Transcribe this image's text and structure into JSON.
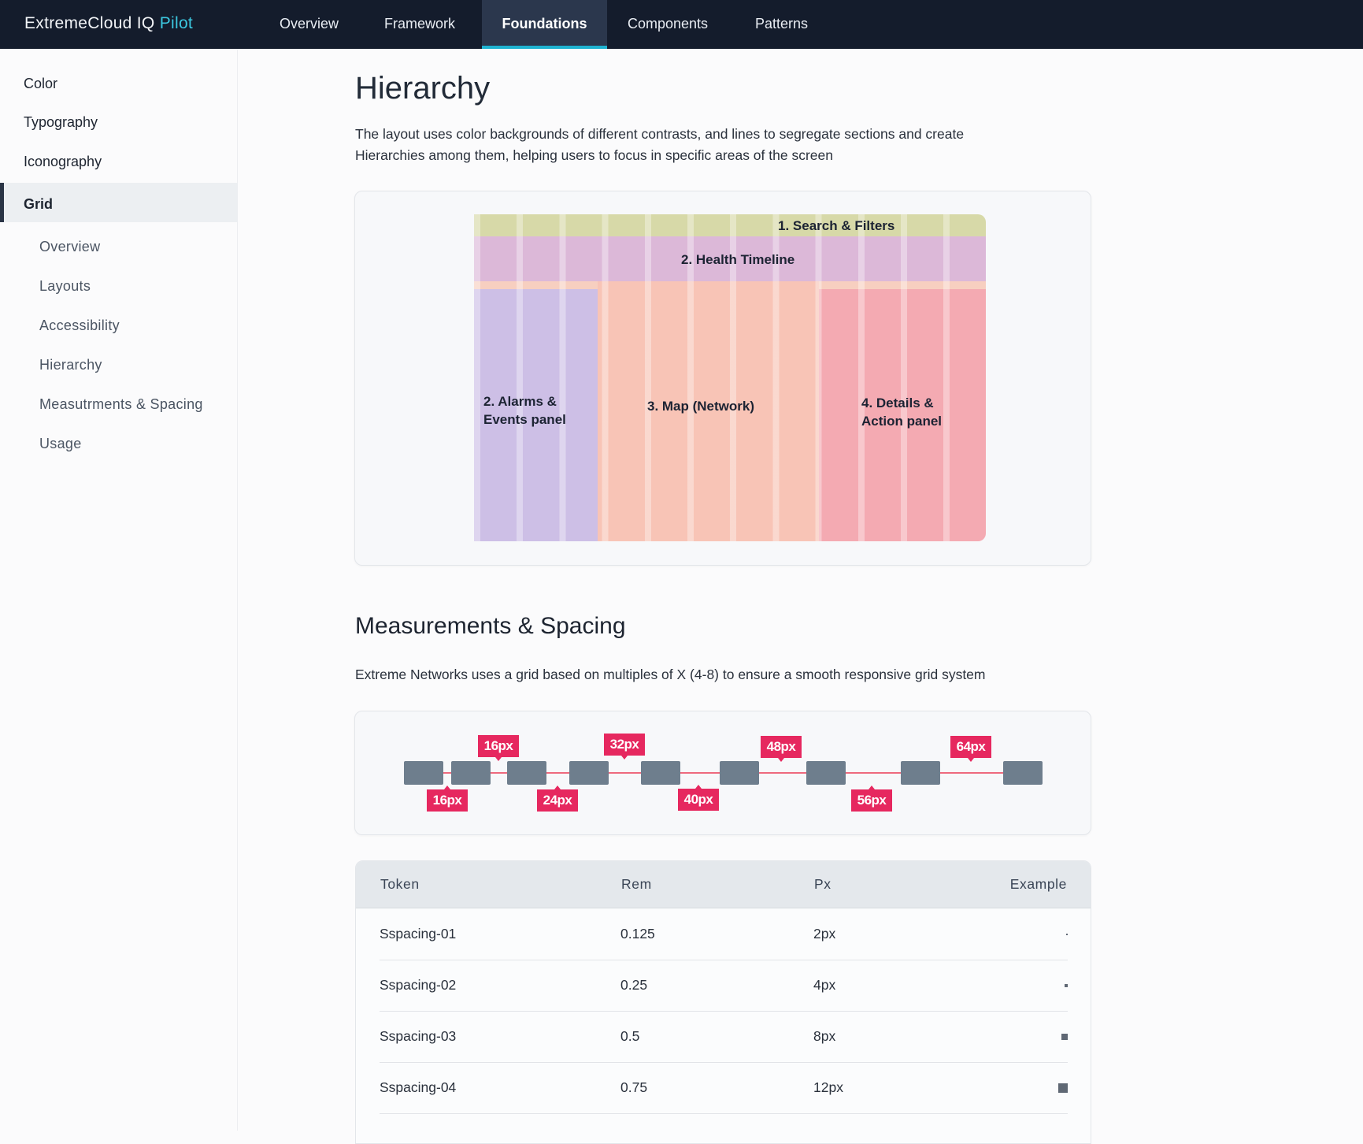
{
  "nav": {
    "logo_main": "ExtremeCloud IQ",
    "logo_accent": "Pilot",
    "items": [
      {
        "label": "Overview"
      },
      {
        "label": "Framework"
      },
      {
        "label": "Foundations",
        "active": true
      },
      {
        "label": "Components"
      },
      {
        "label": "Patterns"
      }
    ]
  },
  "sidebar": {
    "items": [
      {
        "label": "Color"
      },
      {
        "label": "Typography"
      },
      {
        "label": "Iconography"
      },
      {
        "label": "Grid",
        "active": true
      }
    ],
    "sub_items": [
      {
        "label": "Overview"
      },
      {
        "label": "Layouts"
      },
      {
        "label": "Accessibility"
      },
      {
        "label": "Hierarchy"
      },
      {
        "label": "Measutrments & Spacing"
      },
      {
        "label": "Usage"
      }
    ]
  },
  "hierarchy": {
    "title": "Hierarchy",
    "line1": "The layout uses color backgrounds of different contrasts, and lines to segregate sections and create",
    "line2": "Hierarchies among them, helping users to focus in specific areas of the screen",
    "zones": {
      "search": "1. Search & Filters",
      "health": "2. Health Timeline",
      "alarms_1": "2. Alarms &",
      "alarms_2": "Events panel",
      "map": "3. Map (Network)",
      "details_1": "4. Details &",
      "details_2": "Action panel"
    }
  },
  "spacing": {
    "title": "Measurements & Spacing",
    "description": "Extreme Networks uses a grid based on multiples of X (4-8) to ensure a smooth responsive grid system",
    "labels_top": [
      "16px",
      "32px",
      "48px",
      "64px"
    ],
    "labels_bottom": [
      "16px",
      "24px",
      "40px",
      "56px"
    ]
  },
  "table": {
    "headers": {
      "token": "Token",
      "rem": "Rem",
      "px": "Px",
      "example": "Example"
    },
    "rows": [
      {
        "token": "Sspacing-01",
        "rem": "0.125",
        "px": "2px",
        "size": 2
      },
      {
        "token": "Sspacing-02",
        "rem": "0.25",
        "px": "4px",
        "size": 4
      },
      {
        "token": "Sspacing-03",
        "rem": "0.5",
        "px": "8px",
        "size": 8
      },
      {
        "token": "Sspacing-04",
        "rem": "0.75",
        "px": "12px",
        "size": 12
      }
    ]
  },
  "colors": {
    "nav_bg": "#141c2c",
    "accent": "#1fb3d1",
    "tag": "#e6285f"
  }
}
